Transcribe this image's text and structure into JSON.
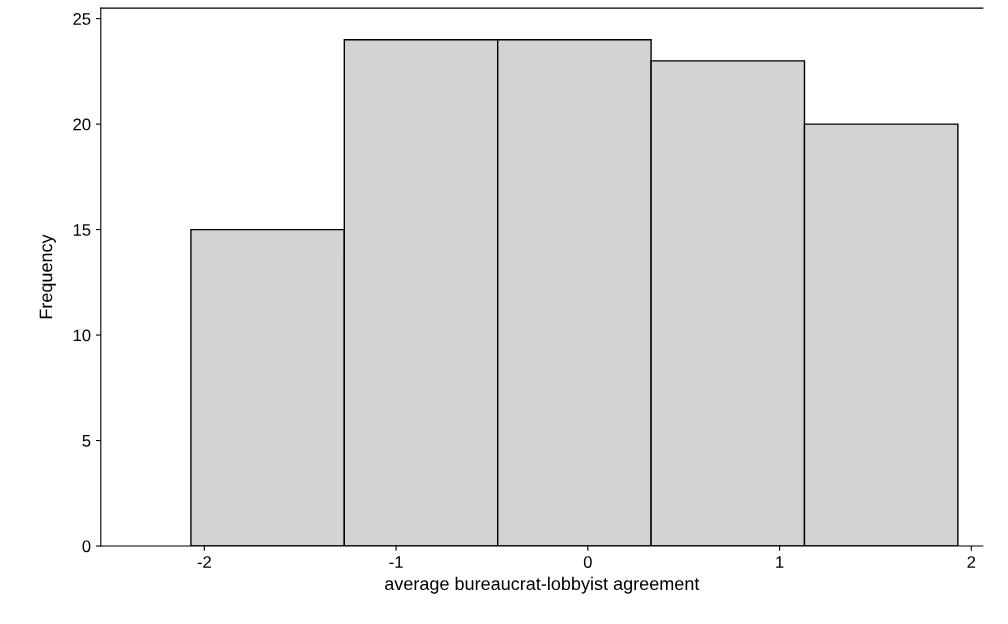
{
  "chart_data": {
    "type": "histogram",
    "xlabel": "average bureaucrat-lobbyist agreement",
    "ylabel": "Frequency",
    "bins": [
      -2.07,
      -1.27,
      -0.47,
      0.33,
      1.13,
      1.93
    ],
    "values": [
      15,
      24,
      24,
      23,
      20
    ],
    "color": "#d3d3d3",
    "xlim": [
      -2.54,
      2.06
    ],
    "xticks": [
      -2,
      -1,
      0,
      1,
      2
    ],
    "ylim": [
      0,
      25.5
    ],
    "yticks": [
      0,
      5,
      10,
      15,
      20,
      25
    ],
    "grid": false,
    "legend": false
  }
}
